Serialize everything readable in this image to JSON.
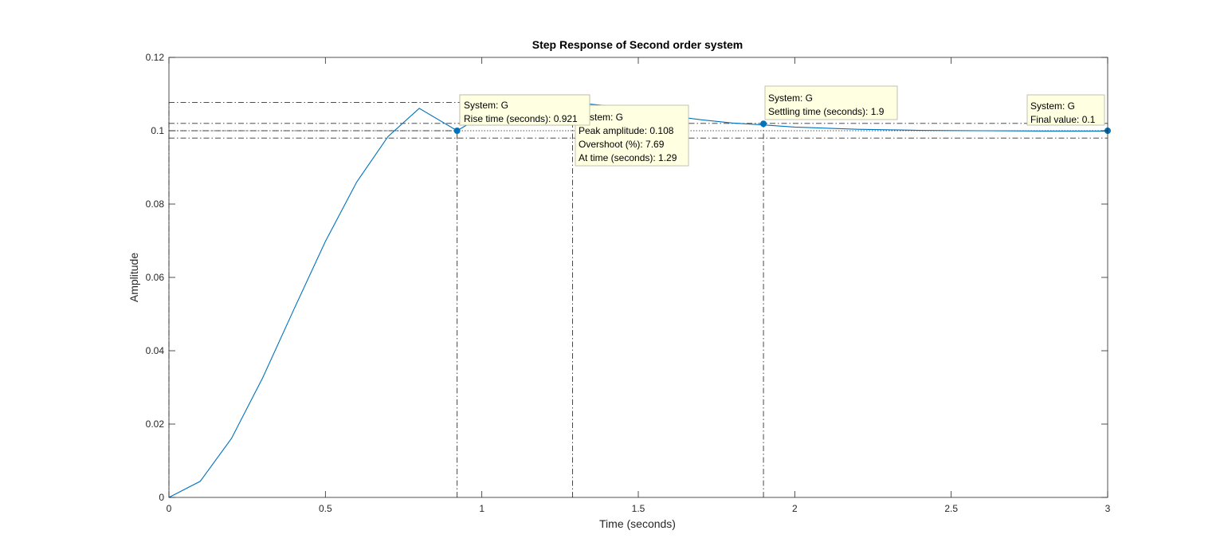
{
  "chart_data": {
    "type": "line",
    "title": "Step Response of Second order system",
    "xlabel": "Time (seconds)",
    "ylabel": "Amplitude",
    "xlim": [
      0,
      3
    ],
    "ylim": [
      0,
      0.12
    ],
    "xticks": [
      "0",
      "0.5",
      "1",
      "1.5",
      "2",
      "2.5",
      "3"
    ],
    "yticks": [
      "0",
      "0.02",
      "0.04",
      "0.06",
      "0.08",
      "0.1",
      "0.12"
    ],
    "grid": false,
    "line_color": "#0072BD",
    "series": [
      {
        "points": [
          [
            0,
            0
          ],
          [
            0.1,
            0.0044
          ],
          [
            0.2,
            0.0161
          ],
          [
            0.3,
            0.0327
          ],
          [
            0.4,
            0.0514
          ],
          [
            0.5,
            0.0698
          ],
          [
            0.6,
            0.086
          ],
          [
            0.7,
            0.0984
          ],
          [
            0.8,
            0.1061
          ],
          [
            0.921,
            0.1
          ],
          [
            1.0,
            0.104
          ],
          [
            1.1,
            0.1068
          ],
          [
            1.2,
            0.1077
          ],
          [
            1.29,
            0.1077
          ],
          [
            1.4,
            0.1068
          ],
          [
            1.5,
            0.1055
          ],
          [
            1.6,
            0.1041
          ],
          [
            1.7,
            0.103
          ],
          [
            1.8,
            0.1021
          ],
          [
            1.9,
            0.1016
          ],
          [
            2.0,
            0.101
          ],
          [
            2.2,
            0.1004
          ],
          [
            2.4,
            0.1001
          ],
          [
            2.6,
            0.1
          ],
          [
            2.8,
            0.0999
          ],
          [
            3.0,
            0.0999
          ]
        ]
      }
    ],
    "characteristics": {
      "peak": {
        "x": 1.29,
        "y": 0.1077
      },
      "rise": {
        "x": 0.921,
        "y": 0.1
      },
      "settling": {
        "x": 1.9,
        "y": 0.1019
      },
      "final": {
        "x": 3,
        "y": 0.1
      },
      "settling_band": [
        0.098,
        0.102
      ]
    },
    "datatips": [
      {
        "id": "rise",
        "lines": [
          "System: G",
          "Rise time (seconds): 0.921"
        ]
      },
      {
        "id": "peak",
        "lines": [
          "System: G",
          "Peak amplitude: 0.108",
          "Overshoot (%): 7.69",
          "At time (seconds): 1.29"
        ]
      },
      {
        "id": "settling",
        "lines": [
          "System: G",
          "Settling time (seconds): 1.9"
        ]
      },
      {
        "id": "final",
        "lines": [
          "System: G",
          "Final value: 0.1"
        ]
      }
    ]
  }
}
